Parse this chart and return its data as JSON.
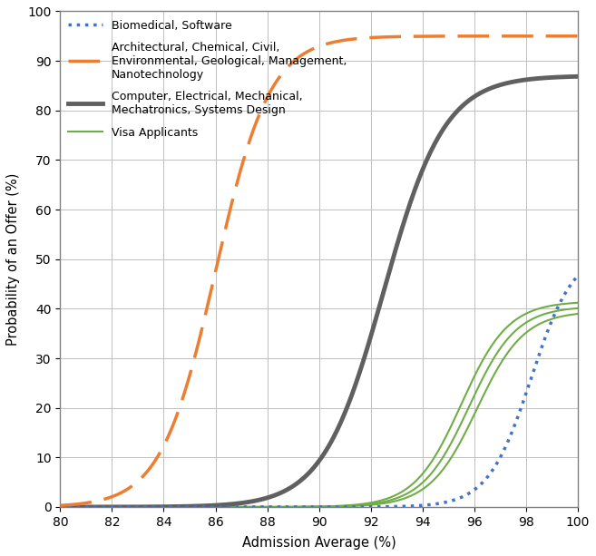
{
  "title": "",
  "xlabel": "Admission Average (%)",
  "ylabel": "Probability of an Offer (%)",
  "xlim": [
    80,
    100
  ],
  "ylim": [
    0,
    100
  ],
  "xticks": [
    80,
    82,
    84,
    86,
    88,
    90,
    92,
    94,
    96,
    98,
    100
  ],
  "yticks": [
    0,
    10,
    20,
    30,
    40,
    50,
    60,
    70,
    80,
    90,
    100
  ],
  "legend_entries": [
    {
      "label": "Biomedical, Software",
      "color": "#4472C4",
      "linestyle": "dotted",
      "linewidth": 2.5
    },
    {
      "label": "Architectural, Chemical, Civil,\nEnvironmental, Geological, Management,\nNanotechnology",
      "color": "#ED7D31",
      "linestyle": "dashed",
      "linewidth": 2.5
    },
    {
      "label": "Computer, Electrical, Mechanical,\nMechatronics, Systems Design",
      "color": "#606060",
      "linestyle": "solid",
      "linewidth": 3.5
    },
    {
      "label": "Visa Applicants",
      "color": "#70AD47",
      "linestyle": "solid",
      "linewidth": 1.5
    }
  ],
  "curves": {
    "biomedical": {
      "color": "#4472C4",
      "linestyle": "dotted",
      "linewidth": 2.5,
      "sigmoid_midpoint": 98.2,
      "sigmoid_steepness": 1.2,
      "max_value": 52
    },
    "architectural": {
      "color": "#ED7D31",
      "linestyle": "dashed",
      "linewidth": 2.5,
      "sigmoid_midpoint": 86.0,
      "sigmoid_steepness": 0.95,
      "max_value": 95
    },
    "computer": {
      "color": "#606060",
      "linestyle": "solid",
      "linewidth": 3.5,
      "sigmoid_midpoint": 92.5,
      "sigmoid_steepness": 0.85,
      "max_value": 87
    },
    "visa_1": {
      "color": "#70AD47",
      "linestyle": "solid",
      "linewidth": 1.5,
      "sigmoid_midpoint": 95.5,
      "sigmoid_steepness": 1.1,
      "max_value": 41.5
    },
    "visa_2": {
      "color": "#70AD47",
      "linestyle": "solid",
      "linewidth": 1.5,
      "sigmoid_midpoint": 95.8,
      "sigmoid_steepness": 1.1,
      "max_value": 40.5
    },
    "visa_3": {
      "color": "#70AD47",
      "linestyle": "solid",
      "linewidth": 1.5,
      "sigmoid_midpoint": 96.1,
      "sigmoid_steepness": 1.1,
      "max_value": 39.5
    }
  },
  "background_color": "#FFFFFF",
  "grid_color": "#C0C0C0",
  "border_color": "#808080"
}
